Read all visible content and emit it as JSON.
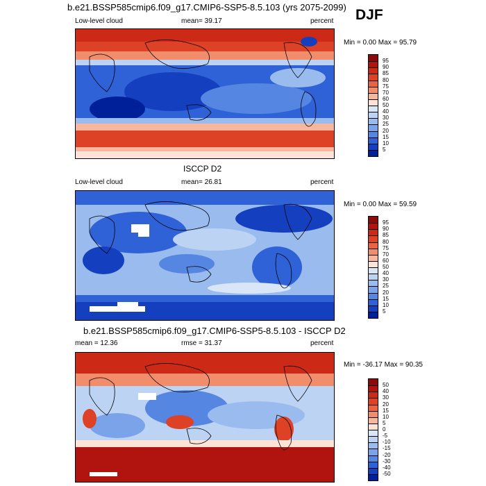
{
  "season": "DJF",
  "panels": [
    {
      "title": "b.e21.BSSP585cmip6.f09_g17.CMIP6-SSP5-8.5.103 (yrs 2075-2099)",
      "left_label": "Low-level cloud",
      "center_label": "mean=  39.17",
      "right_label": "percent",
      "minmax": "Min =   0.00 Max =  95.79",
      "legend_labels": [
        "95",
        "90",
        "85",
        "80",
        "75",
        "70",
        "60",
        "50",
        "40",
        "30",
        "25",
        "20",
        "15",
        "10",
        "5"
      ],
      "legend_colors": [
        "#8c0a0a",
        "#b1140f",
        "#cc2a17",
        "#de4226",
        "#ea6343",
        "#f28d6c",
        "#f7b79e",
        "#fde2d6",
        "#d9e6f7",
        "#bcd3f4",
        "#99bbee",
        "#7aa3e9",
        "#5586e2",
        "#2f62d6",
        "#1440c0",
        "#00209a"
      ]
    },
    {
      "title": "ISCCP D2",
      "left_label": "Low-level cloud",
      "center_label": "mean=  26.81",
      "right_label": "percent",
      "minmax": "Min =   0.00 Max =  59.59",
      "legend_labels": [
        "95",
        "90",
        "85",
        "80",
        "75",
        "70",
        "60",
        "50",
        "40",
        "30",
        "25",
        "20",
        "15",
        "10",
        "5"
      ],
      "legend_colors": [
        "#8c0a0a",
        "#b1140f",
        "#cc2a17",
        "#de4226",
        "#ea6343",
        "#f28d6c",
        "#f7b79e",
        "#fde2d6",
        "#d9e6f7",
        "#bcd3f4",
        "#99bbee",
        "#7aa3e9",
        "#5586e2",
        "#2f62d6",
        "#1440c0",
        "#00209a"
      ]
    },
    {
      "title": "b.e21.BSSP585cmip6.f09_g17.CMIP6-SSP5-8.5.103 - ISCCP D2",
      "left_label": "mean =  12.36",
      "center_label": "rmse =  31.37",
      "right_label": "percent",
      "minmax": "Min = -36.17 Max =  90.35",
      "legend_labels": [
        "50",
        "40",
        "30",
        "20",
        "15",
        "10",
        "5",
        "0",
        "-5",
        "-10",
        "-15",
        "-20",
        "-30",
        "-40",
        "-50"
      ],
      "legend_colors": [
        "#8c0a0a",
        "#b1140f",
        "#cc2a17",
        "#de4226",
        "#ea6343",
        "#f28d6c",
        "#f7b79e",
        "#fde2d6",
        "#d9e6f7",
        "#bcd3f4",
        "#99bbee",
        "#7aa3e9",
        "#5586e2",
        "#2f62d6",
        "#1440c0",
        "#00209a"
      ]
    }
  ]
}
